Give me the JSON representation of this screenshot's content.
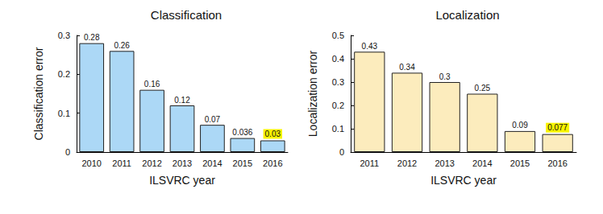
{
  "chart_data": [
    {
      "type": "bar",
      "title": "Classification",
      "x_label": "ILSVRC year",
      "y_label": "Classification error",
      "categories": [
        "2010",
        "2011",
        "2012",
        "2013",
        "2014",
        "2015",
        "2016"
      ],
      "values": [
        0.28,
        0.26,
        0.16,
        0.12,
        0.07,
        0.036,
        0.03
      ],
      "color": "#acd8f6",
      "ylim": [
        0,
        0.3
      ],
      "yticks": [
        0,
        0.1,
        0.2,
        0.3
      ],
      "grid": false,
      "data_labels": true
    },
    {
      "type": "bar",
      "title": "Localization",
      "x_label": "ILSVRC year",
      "y_label": "Localization error",
      "categories": [
        "2011",
        "2012",
        "2013",
        "2014",
        "2015",
        "2016"
      ],
      "values": [
        0.43,
        0.34,
        0.3,
        0.25,
        0.09,
        0.077
      ],
      "color": "#fcecbd",
      "ylim": [
        0,
        0.5
      ],
      "yticks": [
        0,
        0.1,
        0.2,
        0.3,
        0.4,
        0.5
      ],
      "grid": false,
      "data_labels": true
    }
  ]
}
